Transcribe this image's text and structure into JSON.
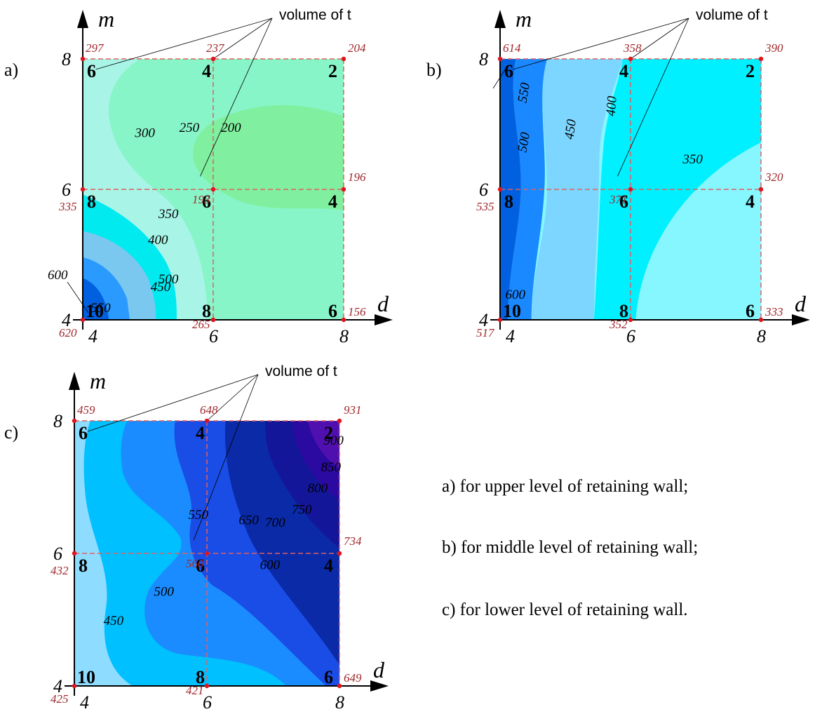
{
  "panels": [
    {
      "letter": "a)",
      "axis_m": "m",
      "axis_d": "d",
      "volume_label": "volume of t",
      "m_ticks": [
        "4",
        "6",
        "8"
      ],
      "d_ticks": [
        "4",
        "6",
        "8"
      ],
      "grid_points": [
        {
          "d": 4,
          "m": 8,
          "mark": "6",
          "value": "297"
        },
        {
          "d": 6,
          "m": 8,
          "mark": "4",
          "value": "237"
        },
        {
          "d": 8,
          "m": 8,
          "mark": "2",
          "value": "204"
        },
        {
          "d": 4,
          "m": 6,
          "mark": "8",
          "value": "335"
        },
        {
          "d": 6,
          "m": 6,
          "mark": "6",
          "value": "193"
        },
        {
          "d": 8,
          "m": 6,
          "mark": "4",
          "value": "196"
        },
        {
          "d": 4,
          "m": 4,
          "mark": "10",
          "value": "620"
        },
        {
          "d": 6,
          "m": 4,
          "mark": "8",
          "value": "265"
        },
        {
          "d": 8,
          "m": 4,
          "mark": "6",
          "value": "156"
        }
      ],
      "isolines": [
        "300",
        "250",
        "200",
        "350",
        "400",
        "500",
        "450",
        "550",
        "600"
      ]
    },
    {
      "letter": "b)",
      "axis_m": "m",
      "axis_d": "d",
      "volume_label": "volume of t",
      "m_ticks": [
        "4",
        "6",
        "8"
      ],
      "d_ticks": [
        "4",
        "6",
        "8"
      ],
      "grid_points": [
        {
          "d": 4,
          "m": 8,
          "mark": "6",
          "value": "614"
        },
        {
          "d": 6,
          "m": 8,
          "mark": "4",
          "value": "358"
        },
        {
          "d": 8,
          "m": 8,
          "mark": "2",
          "value": "390"
        },
        {
          "d": 4,
          "m": 6,
          "mark": "8",
          "value": "535"
        },
        {
          "d": 6,
          "m": 6,
          "mark": "6",
          "value": "371"
        },
        {
          "d": 8,
          "m": 6,
          "mark": "4",
          "value": "320"
        },
        {
          "d": 4,
          "m": 4,
          "mark": "10",
          "value": "517"
        },
        {
          "d": 6,
          "m": 4,
          "mark": "8",
          "value": "352"
        },
        {
          "d": 8,
          "m": 4,
          "mark": "6",
          "value": "333"
        }
      ],
      "isolines": [
        "600",
        "550",
        "500",
        "450",
        "400",
        "350"
      ]
    },
    {
      "letter": "c)",
      "axis_m": "m",
      "axis_d": "d",
      "volume_label": "volume of t",
      "m_ticks": [
        "4",
        "6",
        "8"
      ],
      "d_ticks": [
        "4",
        "6",
        "8"
      ],
      "grid_points": [
        {
          "d": 4,
          "m": 8,
          "mark": "6",
          "value": "459"
        },
        {
          "d": 6,
          "m": 8,
          "mark": "4",
          "value": "648"
        },
        {
          "d": 8,
          "m": 8,
          "mark": "2",
          "value": "931"
        },
        {
          "d": 4,
          "m": 6,
          "mark": "8",
          "value": "432"
        },
        {
          "d": 6,
          "m": 6,
          "mark": "6",
          "value": "560"
        },
        {
          "d": 8,
          "m": 6,
          "mark": "4",
          "value": "734"
        },
        {
          "d": 4,
          "m": 4,
          "mark": "10",
          "value": "425"
        },
        {
          "d": 6,
          "m": 4,
          "mark": "8",
          "value": "421"
        },
        {
          "d": 8,
          "m": 4,
          "mark": "6",
          "value": "649"
        }
      ],
      "isolines": [
        "900",
        "850",
        "800",
        "750",
        "700",
        "650",
        "550",
        "600",
        "500",
        "450"
      ]
    }
  ],
  "captions": [
    "a) for upper level of retaining wall;",
    "b) for middle level of retaining wall;",
    "c) for lower level of retaining wall."
  ],
  "colors": {
    "grid_dash": "#e06060",
    "point": "#e0141e",
    "value_text": "#a0282d",
    "a_fill": [
      "#a8f5e8",
      "#88f5c8",
      "#80f0a0",
      "#00eaf0",
      "#7ac8f0",
      "#2a9aff",
      "#0060e0",
      "#0030b0"
    ],
    "b_fill": [
      "#0060e0",
      "#1a88ff",
      "#7dd6ff",
      "#00f0ff",
      "#86f6ff"
    ],
    "c_fill": [
      "#8edcff",
      "#00c0ff",
      "#1a8cff",
      "#1a4ce6",
      "#0a2aa8",
      "#14169a",
      "#2a0aa0",
      "#5010b0"
    ]
  },
  "chart_data": [
    {
      "type": "heatmap",
      "title": "",
      "xlabel": "d",
      "ylabel": "m",
      "x": [
        4,
        6,
        8
      ],
      "y": [
        4,
        6,
        8
      ],
      "values": [
        [
          620,
          265,
          156
        ],
        [
          335,
          193,
          196
        ],
        [
          297,
          237,
          204
        ]
      ],
      "point_marks": [
        [
          "10",
          "8",
          "6"
        ],
        [
          "8",
          "6",
          "4"
        ],
        [
          "6",
          "4",
          "2"
        ]
      ],
      "isolines": [
        200,
        250,
        300,
        350,
        400,
        450,
        500,
        550,
        600
      ],
      "grid": true
    },
    {
      "type": "heatmap",
      "title": "",
      "xlabel": "d",
      "ylabel": "m",
      "x": [
        4,
        6,
        8
      ],
      "y": [
        4,
        6,
        8
      ],
      "values": [
        [
          517,
          352,
          333
        ],
        [
          535,
          371,
          320
        ],
        [
          614,
          358,
          390
        ]
      ],
      "point_marks": [
        [
          "10",
          "8",
          "6"
        ],
        [
          "8",
          "6",
          "4"
        ],
        [
          "6",
          "4",
          "2"
        ]
      ],
      "isolines": [
        350,
        400,
        450,
        500,
        550,
        600
      ],
      "grid": true
    },
    {
      "type": "heatmap",
      "title": "",
      "xlabel": "d",
      "ylabel": "m",
      "x": [
        4,
        6,
        8
      ],
      "y": [
        4,
        6,
        8
      ],
      "values": [
        [
          425,
          421,
          649
        ],
        [
          432,
          560,
          734
        ],
        [
          459,
          648,
          931
        ]
      ],
      "point_marks": [
        [
          "10",
          "8",
          "6"
        ],
        [
          "8",
          "6",
          "4"
        ],
        [
          "6",
          "4",
          "2"
        ]
      ],
      "isolines": [
        450,
        500,
        550,
        600,
        650,
        700,
        750,
        800,
        850,
        900
      ],
      "grid": true
    }
  ]
}
